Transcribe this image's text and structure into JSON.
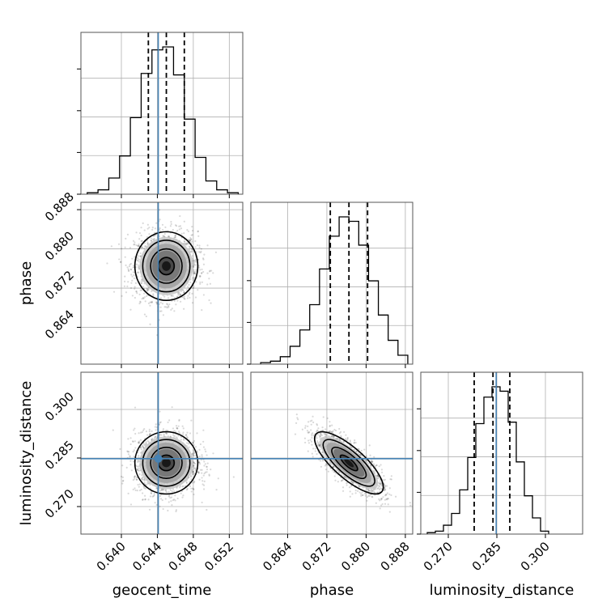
{
  "chart_data": {
    "type": "corner",
    "parameters": [
      {
        "name": "geocent_time",
        "label": "geocent_time",
        "range": [
          0.6355,
          0.6535
        ],
        "ticks": [
          "0.640",
          "0.644",
          "0.648",
          "0.652"
        ],
        "tick_values": [
          0.64,
          0.644,
          0.648,
          0.652
        ],
        "truth": 0.6441,
        "mean": 0.645,
        "sigma": 0.00175,
        "quantiles": [
          0.643,
          0.645,
          0.647
        ],
        "histogram": {
          "bin_edges": [
            0.6362,
            0.6374,
            0.6386,
            0.6398,
            0.641,
            0.6422,
            0.6434,
            0.6446,
            0.6458,
            0.647,
            0.6482,
            0.6494,
            0.6506,
            0.6518,
            0.653
          ],
          "counts": [
            1,
            3,
            11,
            26,
            52,
            82,
            98,
            100,
            81,
            51,
            25,
            9,
            3,
            1
          ]
        }
      },
      {
        "name": "phase",
        "label": "phase",
        "range": [
          0.8565,
          0.8895
        ],
        "ticks": [
          "0.864",
          "0.872",
          "0.880",
          "0.888"
        ],
        "tick_values": [
          0.864,
          0.872,
          0.88,
          0.888
        ],
        "truth": null,
        "mean": 0.8765,
        "sigma": 0.0035,
        "quantiles": [
          0.8727,
          0.8765,
          0.8803
        ],
        "histogram": {
          "bin_edges": [
            0.8585,
            0.8605,
            0.8625,
            0.8645,
            0.8665,
            0.8685,
            0.8705,
            0.8725,
            0.8745,
            0.8765,
            0.8785,
            0.8805,
            0.8825,
            0.8845,
            0.8865,
            0.8885
          ],
          "counts": [
            1,
            2,
            5,
            12,
            23,
            40,
            64,
            86,
            99,
            96,
            80,
            56,
            33,
            16,
            6
          ]
        }
      },
      {
        "name": "luminosity_distance",
        "label": "luminosity_distance",
        "range": [
          0.2615,
          0.3115
        ],
        "ticks": [
          "0.270",
          "0.285",
          "0.300"
        ],
        "tick_values": [
          0.27,
          0.285,
          0.3
        ],
        "truth": 0.2848,
        "mean": 0.2835,
        "sigma": 0.0048,
        "quantiles": [
          0.278,
          0.2838,
          0.289
        ],
        "histogram": {
          "bin_edges": [
            0.2635,
            0.266,
            0.2685,
            0.271,
            0.2735,
            0.276,
            0.2785,
            0.281,
            0.2835,
            0.286,
            0.2885,
            0.291,
            0.2935,
            0.296,
            0.2985,
            0.301
          ],
          "counts": [
            1,
            2,
            6,
            14,
            30,
            52,
            75,
            93,
            100,
            97,
            76,
            49,
            26,
            11,
            2
          ]
        }
      }
    ],
    "correlations": [
      [
        1,
        0,
        0
      ],
      [
        0,
        1,
        -0.78
      ],
      [
        0,
        -0.78,
        1
      ]
    ],
    "contour_levels_sigma": [
      0.5,
      1.0,
      1.5,
      2.0
    ],
    "truth_color": "#4682b4",
    "quantile_line_style": "dashed",
    "grid": true
  }
}
